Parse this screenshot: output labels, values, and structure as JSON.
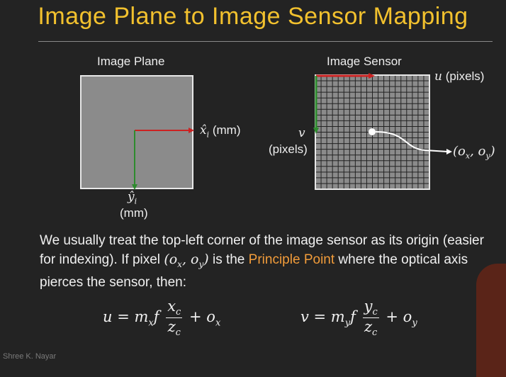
{
  "title": "Image Plane to Image Sensor Mapping",
  "image_plane": {
    "heading": "Image Plane",
    "x_axis": "x̂",
    "x_sub": "i",
    "x_unit": "(mm)",
    "y_axis": "ŷ",
    "y_sub": "i",
    "y_unit": "(mm)"
  },
  "image_sensor": {
    "heading": "Image Sensor",
    "u_label": "u",
    "u_unit": "(pixels)",
    "v_label": "v",
    "v_unit": "(pixels)",
    "principal_point": "(o",
    "pp_x": "x",
    "pp_mid": ", o",
    "pp_y": "y",
    "pp_end": ")"
  },
  "paragraph": {
    "part1": "We usually treat the top-left corner of the image sensor as its origin (easier for indexing). If pixel ",
    "pp": "(o",
    "pp_x": "x",
    "pp_mid": ", o",
    "pp_y": "y",
    "pp_end": ")",
    "part2": " is the ",
    "highlight1": "Principle",
    "part3": " ",
    "highlight2": "Point",
    "part4": " where the optical axis pierces the sensor, then:"
  },
  "equation_u": {
    "lhs": "u = m",
    "lhs_sub": "x",
    "f": "f",
    "num": "x",
    "num_sub": "c",
    "den": "z",
    "den_sub": "c",
    "plus": "+ o",
    "plus_sub": "x"
  },
  "equation_v": {
    "lhs": "v = m",
    "lhs_sub": "y",
    "f": "f",
    "num": "y",
    "num_sub": "c",
    "den": "z",
    "den_sub": "c",
    "plus": "+ o",
    "plus_sub": "y"
  },
  "colors": {
    "title": "#f2c12e",
    "highlight": "#f29c3a",
    "x_axis": "#cc2222",
    "y_axis": "#2e8b2e"
  },
  "watermark": "Shree K. Nayar"
}
